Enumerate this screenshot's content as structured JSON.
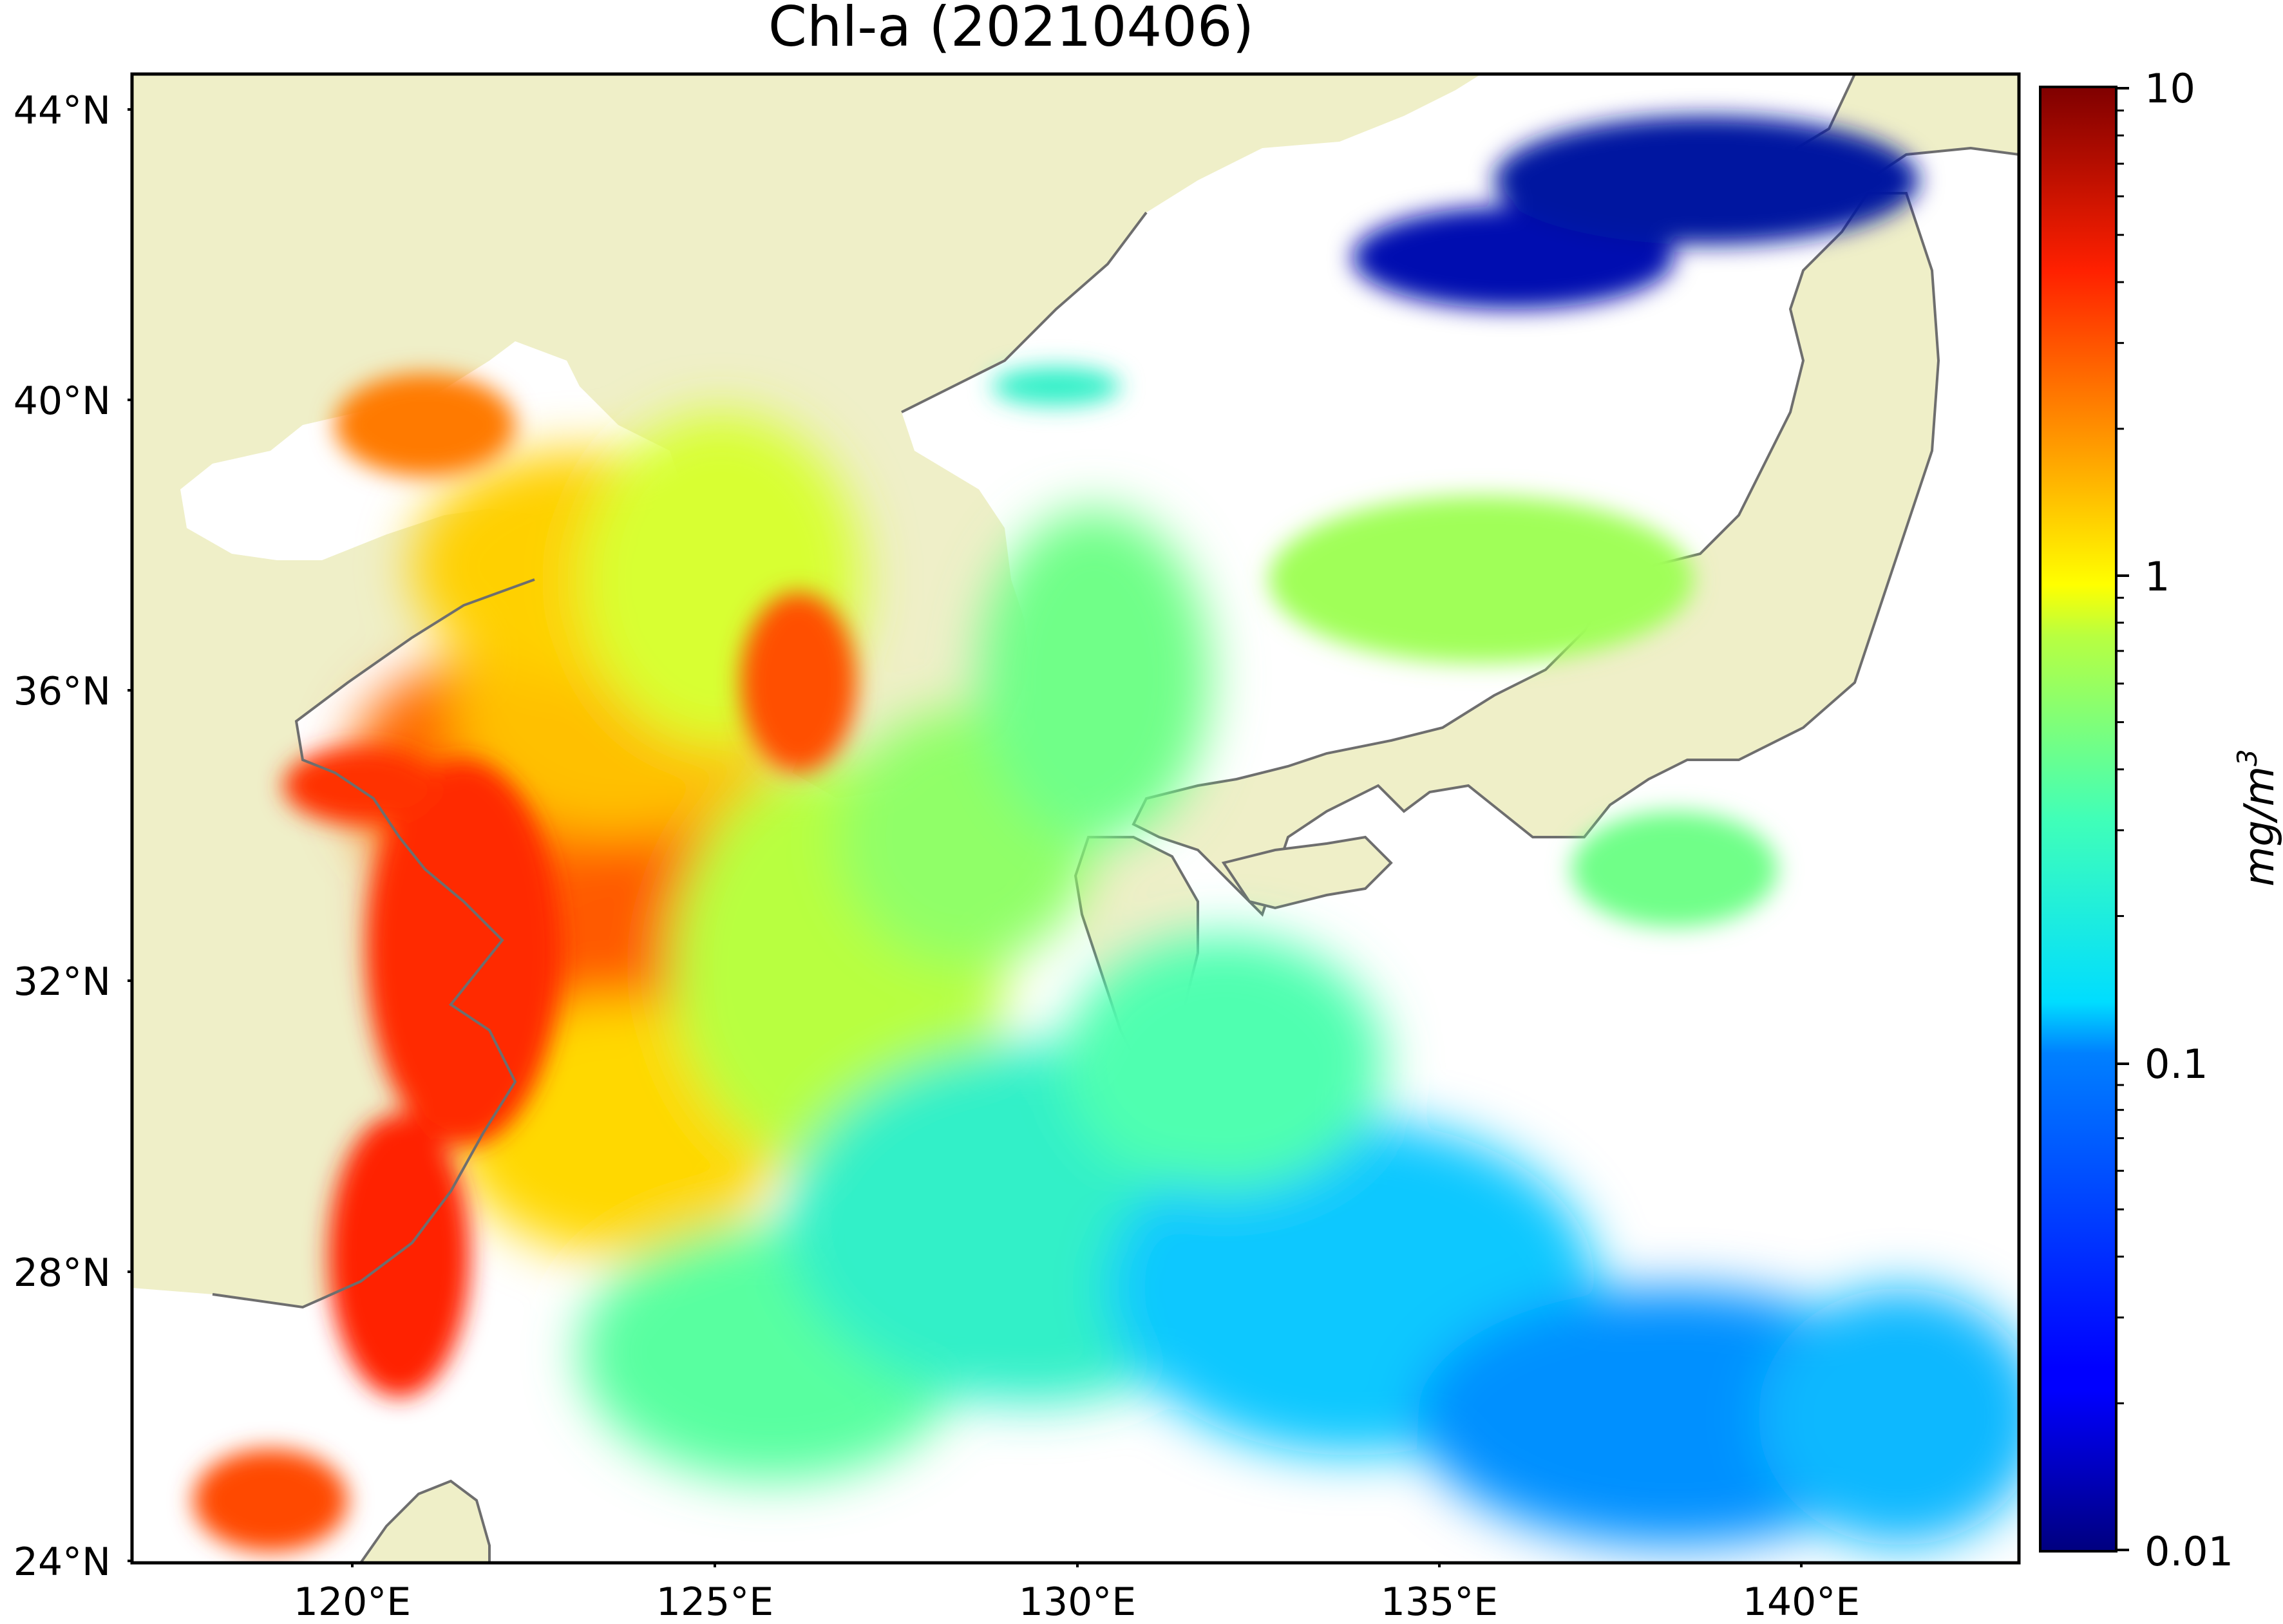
{
  "title": "Chl-a (20210406)",
  "map": {
    "extent_lon": [
      116.5,
      143.0
    ],
    "extent_lat": [
      24.0,
      44.5
    ],
    "land_color": "#efefc8",
    "no_data_color": "#ffffff",
    "coastline_color": "#6e6e6e",
    "lat_ticks": [
      {
        "value": 44,
        "label": "44°N"
      },
      {
        "value": 40,
        "label": "40°N"
      },
      {
        "value": 36,
        "label": "36°N"
      },
      {
        "value": 32,
        "label": "32°N"
      },
      {
        "value": 28,
        "label": "28°N"
      },
      {
        "value": 24,
        "label": "24°N"
      }
    ],
    "lon_ticks": [
      {
        "value": 120,
        "label": "120°E"
      },
      {
        "value": 125,
        "label": "125°E"
      },
      {
        "value": 130,
        "label": "130°E"
      },
      {
        "value": 135,
        "label": "135°E"
      },
      {
        "value": 140,
        "label": "140°E"
      }
    ]
  },
  "colorbar": {
    "scale": "log",
    "range": [
      0.01,
      10
    ],
    "colormap": "jet",
    "ticks": [
      {
        "value": 10,
        "label": "10"
      },
      {
        "value": 1,
        "label": "1"
      },
      {
        "value": 0.1,
        "label": "0.1"
      },
      {
        "value": 0.01,
        "label": "0.01"
      }
    ],
    "unit": "mg/m",
    "unit_sup": "3"
  }
}
